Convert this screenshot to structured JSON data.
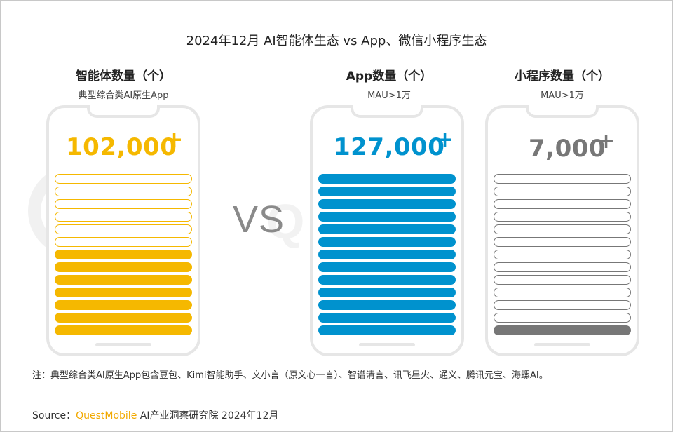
{
  "chart_data": {
    "type": "pictorial-bar",
    "title": "2024年12月 AI智能体生态 vs App、微信小程序生态",
    "vs_label": "VS",
    "panels": [
      {
        "key": "agents",
        "title": "智能体数量（个）",
        "subtitle": "典型综合类AI原生App",
        "value": 102000,
        "value_label": "102,000",
        "plus": "+",
        "color": "#f5b800",
        "total_bars": 13,
        "filled_bars": 7
      },
      {
        "key": "apps",
        "title": "App数量（个）",
        "subtitle": "MAU>1万",
        "value": 127000,
        "value_label": "127,000",
        "plus": "+",
        "color": "#0092ce",
        "total_bars": 13,
        "filled_bars": 13
      },
      {
        "key": "miniprograms",
        "title": "小程序数量（个）",
        "subtitle": "MAU>1万",
        "value": 7000,
        "value_label": "7,000",
        "plus": "+",
        "color": "#777777",
        "total_bars": 13,
        "filled_bars": 1
      }
    ]
  },
  "note": "注：典型综合类AI原生App包含豆包、Kimi智能助手、文小言（原文心一言）、智谱清言、讯飞星火、通义、腾讯元宝、海螺AI。",
  "source": {
    "label": "Source：",
    "brand": "QuestMobile",
    "rest": " AI产业洞察研究院 2024年12月"
  }
}
